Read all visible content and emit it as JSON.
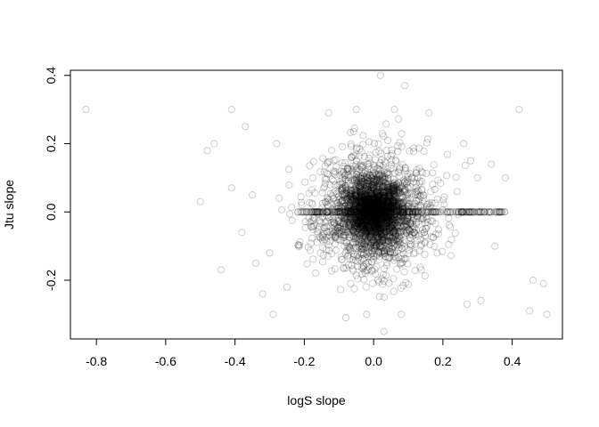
{
  "chart_data": {
    "type": "scatter",
    "title": "",
    "xlabel": "logS slope",
    "ylabel": "Jtu slope",
    "xlim": [
      -0.875,
      0.545
    ],
    "ylim": [
      -0.372,
      0.415
    ],
    "x_ticks": [
      -0.8,
      -0.6,
      -0.4,
      -0.2,
      0.0,
      0.2,
      0.4
    ],
    "x_tick_labels": [
      "-0.8",
      "-0.6",
      "-0.4",
      "-0.2",
      "0.0",
      "0.2",
      "0.4"
    ],
    "y_ticks": [
      -0.2,
      0.0,
      0.2,
      0.4
    ],
    "y_tick_labels": [
      "-0.2",
      "0.0",
      "0.2",
      "0.4"
    ],
    "grid": false,
    "legend": "none",
    "marker": "open-circle",
    "marker_color": "#000000",
    "marker_alpha": 0.2,
    "outlier_points": [
      [
        -0.83,
        0.3
      ],
      [
        -0.48,
        0.18
      ],
      [
        -0.46,
        0.2
      ],
      [
        -0.41,
        0.3
      ],
      [
        -0.41,
        0.07
      ],
      [
        -0.5,
        0.03
      ],
      [
        -0.44,
        -0.17
      ],
      [
        -0.37,
        0.25
      ],
      [
        -0.38,
        -0.06
      ],
      [
        -0.35,
        0.05
      ],
      [
        -0.34,
        -0.15
      ],
      [
        -0.32,
        -0.24
      ],
      [
        -0.29,
        -0.3
      ],
      [
        -0.28,
        0.2
      ],
      [
        -0.3,
        -0.12
      ],
      [
        0.02,
        0.4
      ],
      [
        0.09,
        0.37
      ],
      [
        0.42,
        0.3
      ],
      [
        0.5,
        -0.3
      ],
      [
        0.49,
        -0.21
      ],
      [
        0.46,
        -0.2
      ],
      [
        0.45,
        -0.29
      ],
      [
        0.38,
        0.1
      ],
      [
        0.37,
        0.0
      ],
      [
        0.34,
        0.14
      ],
      [
        0.35,
        -0.1
      ],
      [
        0.31,
        -0.26
      ],
      [
        0.27,
        -0.27
      ],
      [
        0.3,
        0.1
      ],
      [
        0.28,
        0.15
      ],
      [
        -0.08,
        -0.31
      ],
      [
        -0.02,
        -0.3
      ],
      [
        0.03,
        -0.35
      ],
      [
        0.08,
        -0.3
      ],
      [
        -0.25,
        -0.22
      ],
      [
        -0.13,
        0.29
      ],
      [
        0.16,
        0.29
      ],
      [
        -0.05,
        0.3
      ],
      [
        0.06,
        0.3
      ],
      [
        0.26,
        0.2
      ]
    ],
    "dense_cluster": {
      "center": [
        0.0,
        0.0
      ],
      "x_sd": 0.085,
      "y_sd": 0.085,
      "point_count": 3200
    },
    "zero_band": {
      "y": 0.0,
      "x_range": [
        -0.22,
        0.38
      ],
      "point_count": 260
    }
  }
}
